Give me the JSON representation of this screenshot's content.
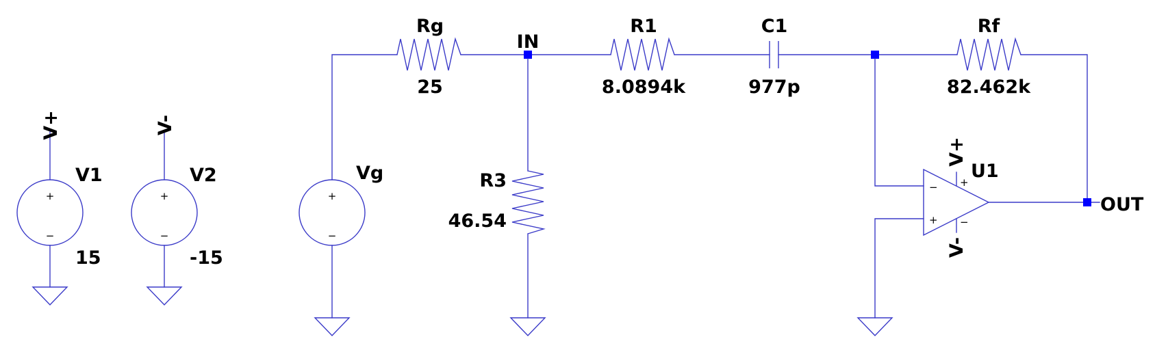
{
  "schematic": {
    "sources": {
      "v1": {
        "name": "V1",
        "value": "15",
        "net": "V+"
      },
      "v2": {
        "name": "V2",
        "value": "-15",
        "net": "V-"
      },
      "vg": {
        "name": "Vg"
      }
    },
    "resistors": {
      "rg": {
        "name": "Rg",
        "value": "25"
      },
      "r1": {
        "name": "R1",
        "value": "8.0894k"
      },
      "rf": {
        "name": "Rf",
        "value": "82.462k"
      },
      "r3": {
        "name": "R3",
        "value": "46.54"
      }
    },
    "capacitor": {
      "name": "C1",
      "value": "977p"
    },
    "opamp": {
      "name": "U1",
      "supply_pos": "V+",
      "supply_neg": "V-",
      "pin_inv": "−",
      "pin_noninv": "+",
      "pin_sup_pos": "+",
      "pin_sup_neg": "−"
    },
    "source_polarity": {
      "plus": "+",
      "minus": "−"
    },
    "nets": {
      "in": "IN",
      "out": "OUT"
    },
    "colors": {
      "wire": "#3a3ac8",
      "node": "#0000ff",
      "text": "#000000"
    }
  }
}
